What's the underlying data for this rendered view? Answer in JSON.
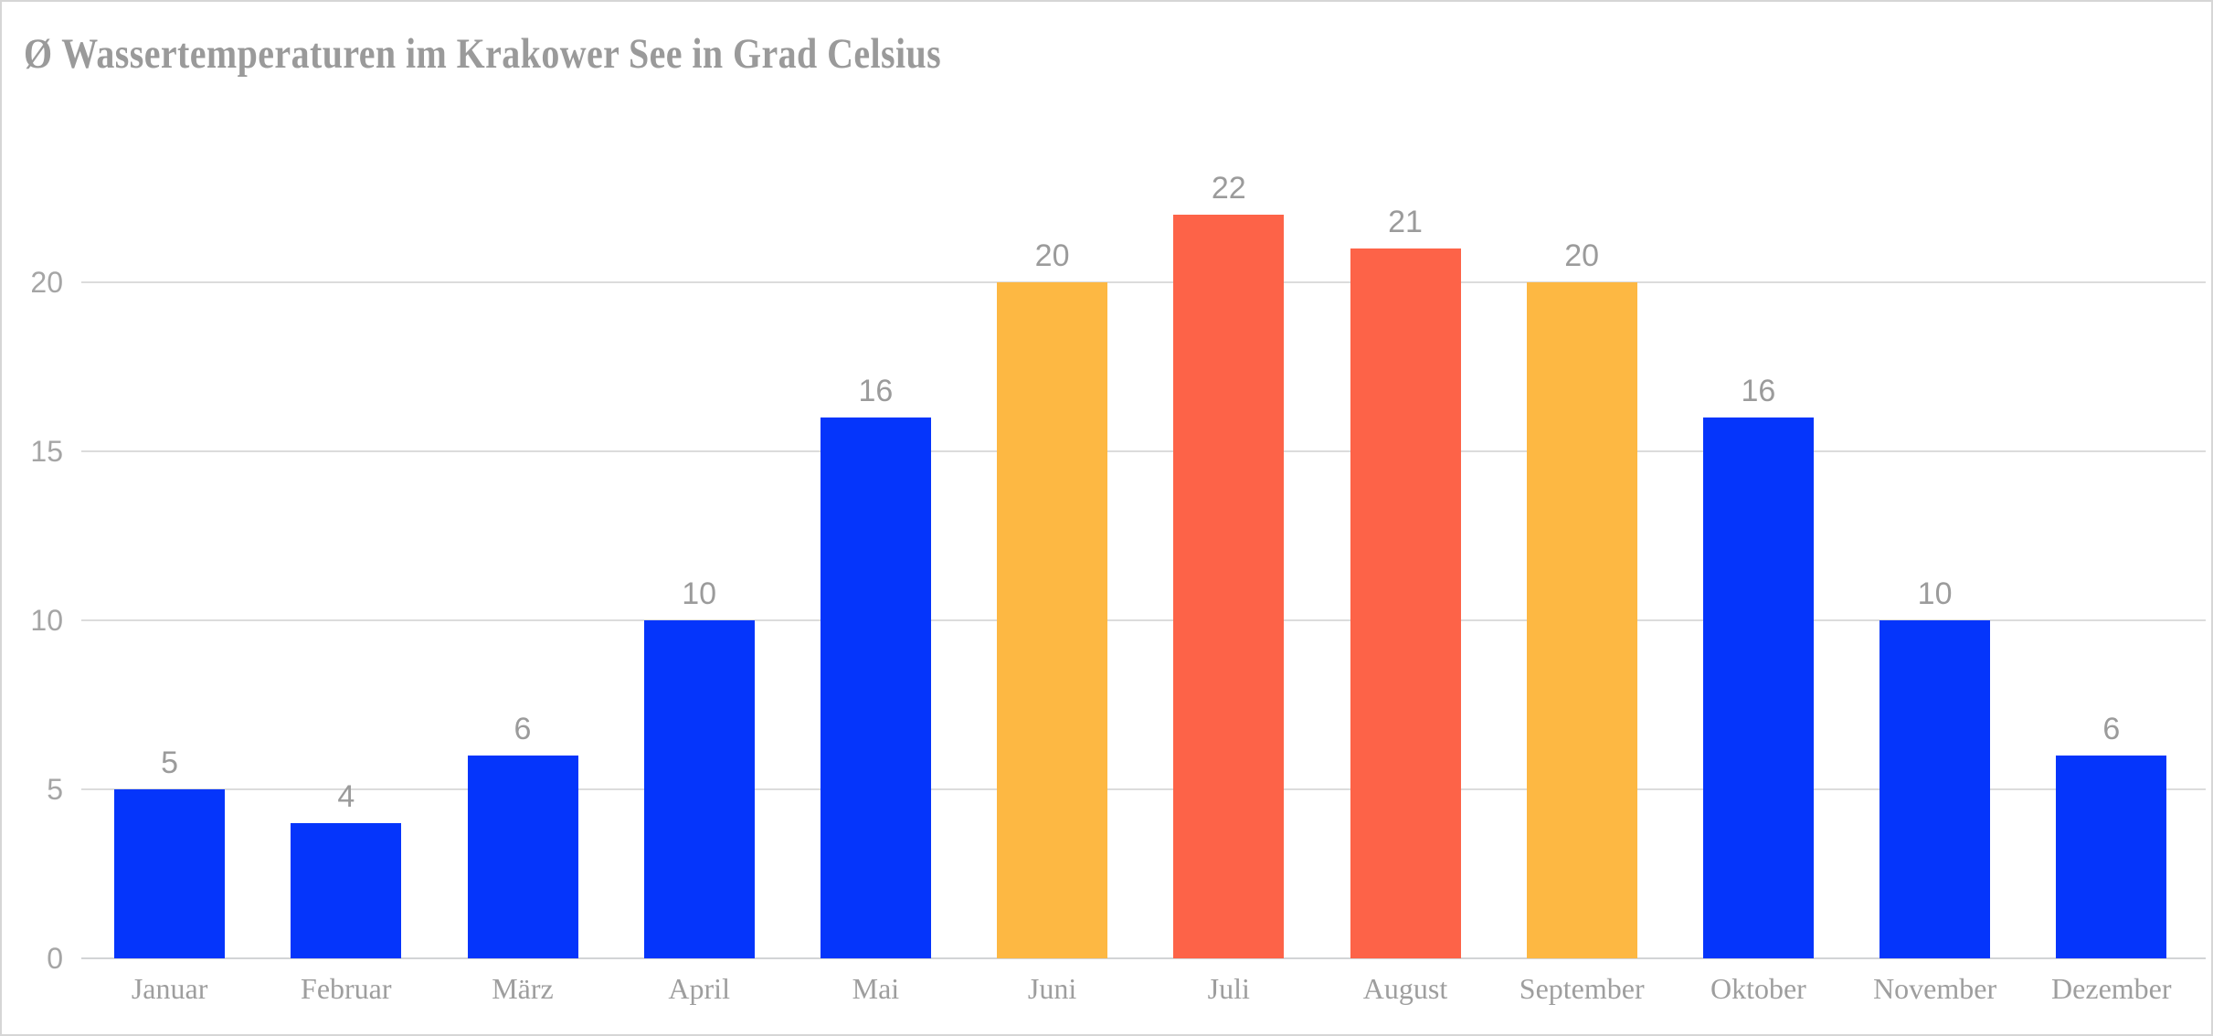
{
  "page": {
    "background": "#ffffff",
    "border_color": "#d6d6d6"
  },
  "chart_data": {
    "type": "bar",
    "title": "Ø Wassertemperaturen im Krakower See in Grad Celsius",
    "categories": [
      "Januar",
      "Februar",
      "März",
      "April",
      "Mai",
      "Juni",
      "Juli",
      "August",
      "September",
      "Oktober",
      "November",
      "Dezember"
    ],
    "values": [
      5,
      4,
      6,
      10,
      16,
      20,
      22,
      21,
      20,
      16,
      10,
      6
    ],
    "bar_colors": [
      "#0535fb",
      "#0535fb",
      "#0535fb",
      "#0535fb",
      "#0535fb",
      "#fdb843",
      "#fd6348",
      "#fd6348",
      "#fdb843",
      "#0535fb",
      "#0535fb",
      "#0535fb"
    ],
    "palette": {
      "blue": "#0535fb",
      "orange": "#fdb843",
      "red": "#fd6348"
    },
    "yticks": [
      0,
      5,
      10,
      15,
      20
    ],
    "ylim": [
      0,
      23.5
    ],
    "xlabel": "",
    "ylabel": "",
    "grid": "horizontal",
    "legend": "none",
    "value_labels": "above bars",
    "title_color": "#9a9a9a",
    "value_label_color": "#9b9b9b",
    "x_label_color": "#9e9e9e",
    "tick_label_color": "#a5a5a5",
    "gridline_color": "#dcdcdc",
    "baseline_color": "#d2d4d6"
  }
}
